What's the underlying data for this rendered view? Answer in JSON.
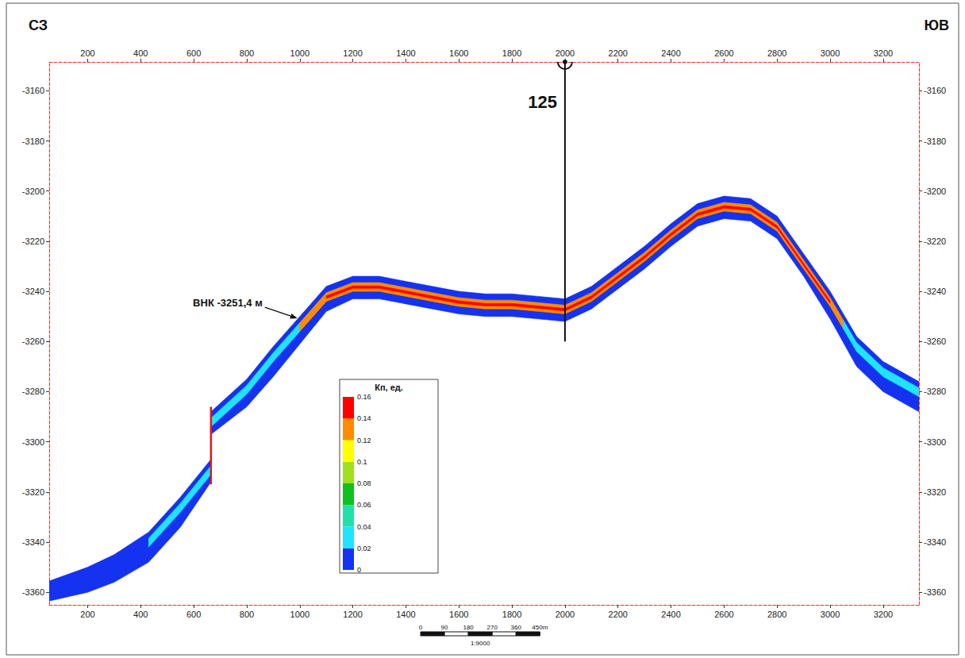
{
  "chart_data": {
    "type": "cross_section",
    "direction_labels": [
      "СЗ",
      "ЮВ"
    ],
    "xlim": [
      55,
      3335
    ],
    "xticks": [
      200,
      400,
      600,
      800,
      1000,
      1200,
      1400,
      1600,
      1800,
      2000,
      2200,
      2400,
      2600,
      2800,
      3000,
      3200
    ],
    "ylim": [
      -3365,
      -3148.5
    ],
    "yticks": [
      -3360,
      -3340,
      -3320,
      -3300,
      -3280,
      -3260,
      -3240,
      -3220,
      -3200,
      -3180,
      -3160
    ],
    "grid": false,
    "bodies": [
      {
        "porosity": 0.01,
        "x": [
          55,
          200,
          300,
          430,
          550,
          665
        ],
        "top": [
          -3355.5,
          -3350,
          -3345,
          -3336,
          -3322,
          -3307
        ],
        "bottom": [
          -3363.5,
          -3360,
          -3356,
          -3348,
          -3334,
          -3316
        ]
      },
      {
        "porosity": 0.01,
        "x": [
          665,
          800,
          900,
          1000,
          1100,
          1200,
          1300,
          1400,
          1500,
          1600,
          1700,
          1800,
          1900,
          2000,
          2100,
          2200,
          2300,
          2400,
          2500,
          2600,
          2700,
          2800,
          2900,
          3000,
          3100,
          3200,
          3335
        ],
        "top": [
          -3288,
          -3275,
          -3262,
          -3250,
          -3238,
          -3234,
          -3234,
          -3236,
          -3238,
          -3240,
          -3241,
          -3241,
          -3242,
          -3243,
          -3238,
          -3230,
          -3222,
          -3213,
          -3205,
          -3202,
          -3203,
          -3210,
          -3225,
          -3240,
          -3258,
          -3268,
          -3276
        ],
        "bottom": [
          -3297,
          -3286,
          -3274,
          -3261,
          -3248,
          -3243,
          -3243,
          -3245,
          -3247,
          -3249,
          -3250,
          -3250,
          -3251,
          -3252,
          -3247,
          -3239,
          -3231,
          -3222,
          -3214,
          -3211,
          -3212,
          -3219,
          -3234,
          -3251,
          -3270,
          -3280,
          -3288
        ]
      },
      {
        "porosity": 0.03,
        "x": [
          430,
          550,
          665
        ],
        "top": [
          -3338.5,
          -3324.5,
          -3309.5
        ],
        "bottom": [
          -3342,
          -3328,
          -3313
        ]
      },
      {
        "porosity": 0.03,
        "x": [
          665,
          800,
          900,
          1000
        ],
        "top": [
          -3290.5,
          -3277.5,
          -3264.5,
          -3252.5
        ],
        "bottom": [
          -3294,
          -3281,
          -3268,
          -3256
        ]
      },
      {
        "porosity": 0.13,
        "x": [
          1000,
          1100,
          1200,
          1300,
          1400,
          1500,
          1600,
          1700,
          1800,
          1900,
          2000,
          2100,
          2200,
          2300,
          2400,
          2500,
          2600,
          2700,
          2800,
          2900,
          3000,
          3050
        ],
        "top": [
          -3252.5,
          -3240.5,
          -3236.5,
          -3236.5,
          -3238.5,
          -3240.5,
          -3242.5,
          -3243.5,
          -3243.5,
          -3244.5,
          -3245.5,
          -3240.5,
          -3232.5,
          -3224.5,
          -3215.5,
          -3207.5,
          -3204.5,
          -3205.5,
          -3212.5,
          -3227.5,
          -3242.5,
          -3251.5
        ],
        "bottom": [
          -3256,
          -3244,
          -3240,
          -3240,
          -3242,
          -3244,
          -3246,
          -3247,
          -3247,
          -3248,
          -3249,
          -3244,
          -3236,
          -3228,
          -3219,
          -3211,
          -3208,
          -3209,
          -3216,
          -3231,
          -3246,
          -3255
        ]
      },
      {
        "porosity": 0.15,
        "x": [
          1100,
          1200,
          1300,
          1400,
          1500,
          1600,
          1700,
          1800,
          1900,
          2000,
          2100,
          2200,
          2300,
          2400,
          2500,
          2600,
          2700,
          2800,
          2900,
          3000
        ],
        "top": [
          -3241.8,
          -3237.8,
          -3237.8,
          -3239.8,
          -3241.8,
          -3243.8,
          -3244.8,
          -3244.8,
          -3245.8,
          -3246.8,
          -3241.8,
          -3233.8,
          -3225.8,
          -3216.8,
          -3208.8,
          -3205.8,
          -3206.8,
          -3213.8,
          -3228.8,
          -3243.8
        ],
        "bottom": [
          -3242.8,
          -3238.8,
          -3238.8,
          -3240.8,
          -3242.8,
          -3244.8,
          -3245.8,
          -3245.8,
          -3246.8,
          -3247.8,
          -3242.8,
          -3234.8,
          -3226.8,
          -3217.8,
          -3209.8,
          -3206.8,
          -3207.8,
          -3214.8,
          -3229.8,
          -3244.8
        ]
      },
      {
        "porosity": 0.03,
        "x": [
          3050,
          3100,
          3200,
          3335
        ],
        "top": [
          -3251.5,
          -3260.5,
          -3270.5,
          -3278.5
        ],
        "bottom": [
          -3255,
          -3264,
          -3274,
          -3282
        ]
      }
    ],
    "fault": {
      "x": [
        665,
        665
      ],
      "y": [
        -3286,
        -3317
      ],
      "color": "#e8141a"
    },
    "well": {
      "label": "125",
      "x": 2000,
      "y": [
        -3148.5,
        -3260
      ]
    },
    "annotation": {
      "text": "ВНК -3251,4 м",
      "x": 1000,
      "y": -3251.4
    },
    "colorbar": {
      "title": "Кп, ед.",
      "range": [
        0,
        0.16
      ],
      "ticks": [
        0,
        0.02,
        0.04,
        0.06,
        0.08,
        0.1,
        0.12,
        0.14,
        0.16
      ],
      "colors": [
        "#1432f0",
        "#1fe3ff",
        "#22e0a8",
        "#10c020",
        "#a0e020",
        "#ffff00",
        "#ff8c00",
        "#ff0000"
      ]
    },
    "scale_bar": {
      "ticks": [
        0,
        90,
        180,
        270,
        360,
        {
          "value": 450,
          "label": "450m"
        }
      ],
      "ratio": "1:9000"
    }
  }
}
